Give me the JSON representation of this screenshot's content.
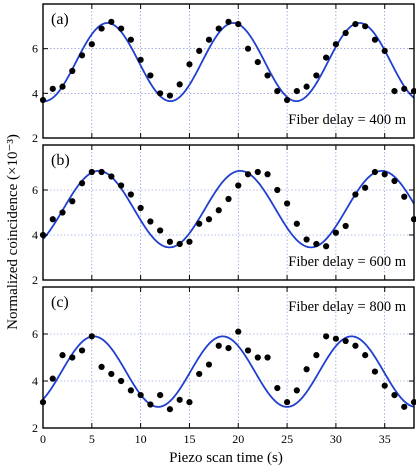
{
  "figure": {
    "xlabel": "Piezo scan time (s)",
    "ylabel": "Normalized coincidence (×10⁻³)"
  },
  "colors": {
    "fit_line": "#1f3fd0",
    "grid": "#6f7fd6",
    "points": "#000000"
  },
  "chart_data": [
    {
      "type": "scatter",
      "panel_label": "(a)",
      "annotation": "Fiber delay = 400 m",
      "xlim": [
        0,
        38
      ],
      "ylim": [
        2,
        8
      ],
      "x_ticks": [
        0,
        5,
        10,
        15,
        20,
        25,
        30,
        35
      ],
      "y_ticks": [
        2,
        4,
        6
      ],
      "grid": true,
      "series": [
        {
          "kind": "points",
          "x": [
            0,
            1,
            2,
            3,
            4,
            5,
            6,
            7,
            8,
            9,
            10,
            11,
            12,
            13,
            14,
            15,
            16,
            17,
            18,
            19,
            20,
            21,
            22,
            23,
            24,
            25,
            26,
            27,
            28,
            29,
            30,
            31,
            32,
            33,
            34,
            35,
            36,
            37,
            38
          ],
          "y": [
            3.7,
            4.2,
            4.3,
            5.0,
            5.7,
            6.2,
            6.9,
            7.2,
            6.9,
            6.4,
            5.5,
            4.8,
            4.0,
            3.9,
            4.4,
            5.3,
            5.9,
            6.4,
            6.9,
            7.2,
            7.1,
            6.0,
            5.4,
            4.8,
            4.1,
            3.7,
            4.1,
            4.3,
            4.8,
            5.6,
            6.2,
            6.7,
            7.1,
            7.0,
            6.4,
            5.9,
            4.1,
            4.2,
            4.1
          ]
        },
        {
          "kind": "fit",
          "mean": 5.4,
          "amplitude": 1.75,
          "period": 12.9,
          "peak_x": 6.6
        }
      ]
    },
    {
      "type": "scatter",
      "panel_label": "(b)",
      "annotation": "Fiber delay = 600 m",
      "xlim": [
        0,
        38
      ],
      "ylim": [
        2,
        8
      ],
      "x_ticks": [
        0,
        5,
        10,
        15,
        20,
        25,
        30,
        35
      ],
      "y_ticks": [
        2,
        4,
        6
      ],
      "grid": true,
      "series": [
        {
          "kind": "points",
          "x": [
            0,
            1,
            2,
            3,
            4,
            5,
            6,
            7,
            8,
            9,
            10,
            11,
            12,
            13,
            14,
            15,
            16,
            17,
            18,
            19,
            20,
            21,
            22,
            23,
            24,
            25,
            26,
            27,
            28,
            29,
            30,
            31,
            32,
            33,
            34,
            35,
            36,
            37,
            38
          ],
          "y": [
            4.0,
            4.7,
            5.0,
            5.5,
            6.3,
            6.8,
            6.8,
            6.6,
            6.2,
            5.8,
            5.2,
            4.6,
            4.2,
            3.7,
            3.6,
            3.7,
            4.5,
            4.7,
            5.1,
            5.6,
            6.2,
            6.7,
            6.8,
            6.7,
            6.0,
            5.4,
            4.5,
            3.8,
            3.6,
            3.5,
            4.1,
            4.4,
            5.8,
            6.1,
            6.8,
            6.7,
            6.4,
            5.7,
            4.7
          ]
        },
        {
          "kind": "fit",
          "mean": 5.15,
          "amplitude": 1.7,
          "period": 14.5,
          "peak_x": 5.7
        }
      ]
    },
    {
      "type": "scatter",
      "panel_label": "(c)",
      "annotation": "Fiber delay = 800 m",
      "xlim": [
        0,
        38
      ],
      "ylim": [
        2,
        8
      ],
      "x_ticks": [
        0,
        5,
        10,
        15,
        20,
        25,
        30,
        35
      ],
      "y_ticks": [
        2,
        4,
        6
      ],
      "grid": true,
      "series": [
        {
          "kind": "points",
          "x": [
            0,
            1,
            2,
            3,
            4,
            5,
            6,
            7,
            8,
            9,
            10,
            11,
            12,
            13,
            14,
            15,
            16,
            17,
            18,
            19,
            20,
            21,
            22,
            23,
            24,
            25,
            26,
            27,
            28,
            29,
            30,
            31,
            32,
            33,
            34,
            35,
            36,
            37,
            38
          ],
          "y": [
            3.1,
            4.1,
            5.1,
            5.0,
            5.3,
            5.9,
            4.6,
            4.3,
            4.0,
            3.6,
            3.4,
            3.0,
            3.4,
            2.8,
            3.2,
            3.1,
            4.3,
            4.7,
            5.5,
            5.4,
            6.1,
            5.3,
            5.0,
            5.0,
            3.7,
            3.1,
            3.6,
            4.5,
            5.1,
            5.9,
            5.8,
            5.7,
            5.5,
            5.1,
            4.4,
            3.8,
            3.4,
            2.9,
            3.1
          ]
        },
        {
          "kind": "fit",
          "mean": 4.4,
          "amplitude": 1.5,
          "period": 13.2,
          "peak_x": 5.2
        }
      ]
    }
  ]
}
